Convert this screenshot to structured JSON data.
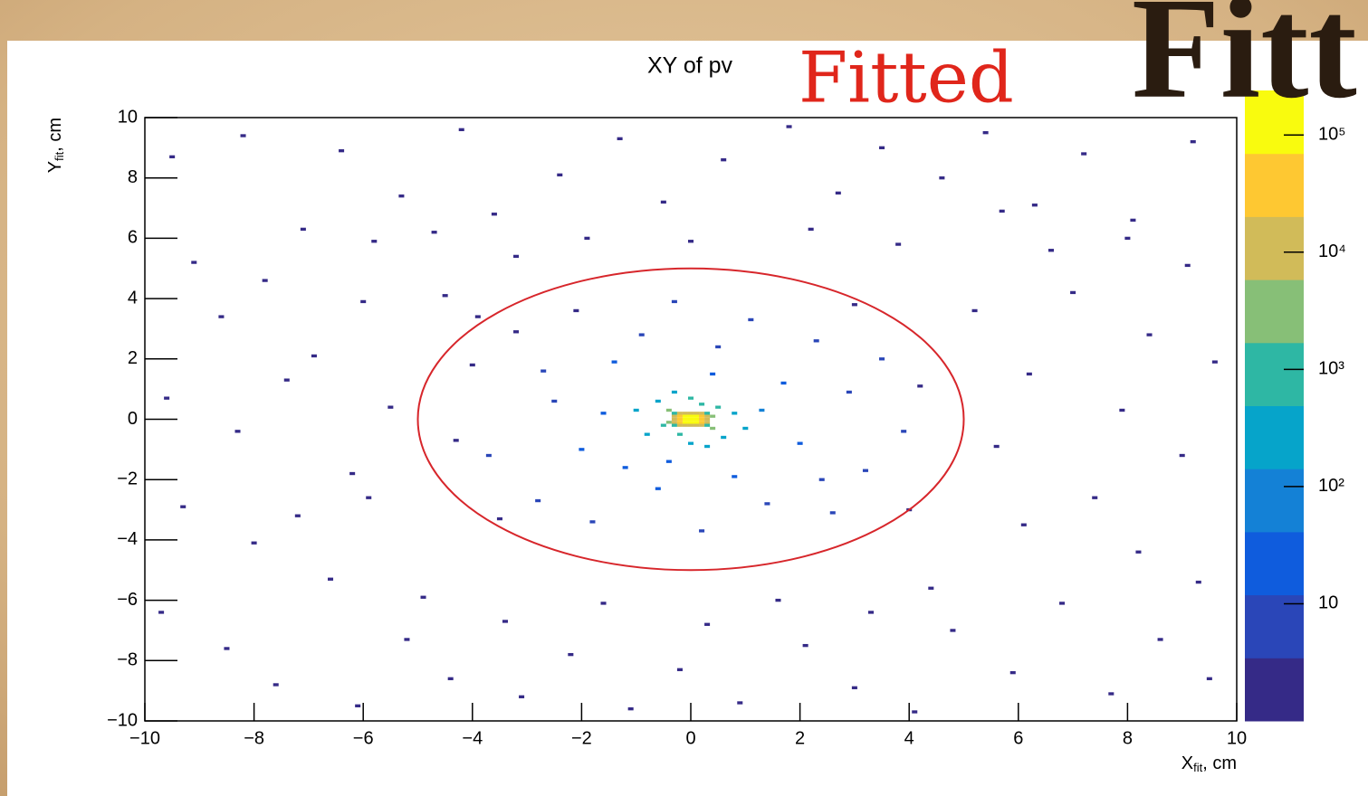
{
  "chart_data": {
    "type": "heatmap",
    "title": "XY of pv",
    "annotations": [
      "Fitted",
      "Fitt"
    ],
    "xlabel": [
      "X",
      "fit",
      ", cm"
    ],
    "ylabel": [
      "Y",
      "fit",
      ", cm"
    ],
    "xlim": [
      -10,
      10
    ],
    "ylim": [
      -10,
      10
    ],
    "xticks": [
      {
        "value": -10,
        "label": "−10"
      },
      {
        "value": -8,
        "label": "−8"
      },
      {
        "value": -6,
        "label": "−6"
      },
      {
        "value": -4,
        "label": "−4"
      },
      {
        "value": -2,
        "label": "−2"
      },
      0,
      2,
      4,
      6,
      8,
      10
    ],
    "yticks": [
      {
        "value": -10,
        "label": "−10"
      },
      {
        "value": -8,
        "label": "−8"
      },
      {
        "value": -6,
        "label": "−6"
      },
      {
        "value": -4,
        "label": "−4"
      },
      {
        "value": -2,
        "label": "−2"
      },
      0,
      2,
      4,
      6,
      8,
      10
    ],
    "bin_size": [
      0.1,
      0.1
    ],
    "x": [
      -9.5,
      -8.2,
      -7.1,
      -6.4,
      -5.3,
      -4.2,
      -3.6,
      -2.4,
      -1.3,
      -0.5,
      0.6,
      1.8,
      2.7,
      3.5,
      4.6,
      5.4,
      6.3,
      7.2,
      8.1,
      9.2,
      -9.1,
      -8.6,
      -7.8,
      -6.9,
      -9.6,
      -8.3,
      -7.4,
      -6.2,
      -9.3,
      -8.0,
      -7.2,
      -6.6,
      -9.7,
      -8.5,
      -7.6,
      -6.1,
      -5.2,
      -4.4,
      -3.1,
      -2.2,
      -1.1,
      -0.2,
      0.9,
      2.1,
      3.0,
      4.1,
      4.8,
      5.9,
      6.8,
      7.7,
      8.6,
      9.5,
      9.3,
      8.2,
      7.4,
      9.0,
      7.9,
      9.6,
      8.4,
      7.0,
      9.1,
      8.0,
      6.6,
      5.7,
      -5.8,
      -4.7,
      -6.0,
      -5.5,
      -5.9,
      -4.9,
      -3.4,
      -1.6,
      0.3,
      1.6,
      3.3,
      4.4,
      6.1,
      5.6,
      6.2,
      5.2,
      3.8,
      2.2,
      0.0,
      -1.9,
      -3.2,
      -4.5,
      -4.0,
      -3.7,
      -3.2,
      -2.8,
      -2.5,
      -2.1,
      -1.8,
      -1.4,
      -1.2,
      -0.9,
      -0.6,
      -0.3,
      0.2,
      0.5,
      0.8,
      1.1,
      1.4,
      1.7,
      2.0,
      2.3,
      2.6,
      2.9,
      3.2,
      3.5,
      3.9,
      4.2,
      -4.3,
      -3.5,
      -2.0,
      1.3,
      -1.6,
      0.4,
      -0.4,
      2.4,
      -2.7,
      3.0,
      -3.9,
      4.0,
      -1.0,
      -0.8,
      -0.6,
      -0.5,
      -0.4,
      0.4,
      0.5,
      0.6,
      0.8,
      1.0,
      0.2,
      -0.2,
      0.0,
      0.0,
      0.3,
      -0.3,
      0.4,
      -0.4,
      -0.3,
      -0.2,
      -0.1,
      0.0,
      0.1,
      0.2,
      0.3,
      -0.3,
      -0.2,
      -0.1,
      0.0,
      0.1,
      0.2,
      0.3,
      -0.3,
      -0.2,
      -0.1,
      0.0,
      0.1,
      0.2,
      0.3,
      -0.3,
      -0.2,
      -0.1,
      0.0,
      0.1,
      0.2,
      0.3,
      -0.3,
      -0.2,
      -0.1,
      0.0,
      0.1,
      0.2,
      0.3
    ],
    "y": [
      8.7,
      9.4,
      6.3,
      8.9,
      7.4,
      9.6,
      6.8,
      8.1,
      9.3,
      7.2,
      8.6,
      9.7,
      7.5,
      9.0,
      8.0,
      9.5,
      7.1,
      8.8,
      6.6,
      9.2,
      5.2,
      3.4,
      4.6,
      2.1,
      0.7,
      -0.4,
      1.3,
      -1.8,
      -2.9,
      -4.1,
      -3.2,
      -5.3,
      -6.4,
      -7.6,
      -8.8,
      -9.5,
      -7.3,
      -8.6,
      -9.2,
      -7.8,
      -9.6,
      -8.3,
      -9.4,
      -7.5,
      -8.9,
      -9.7,
      -7.0,
      -8.4,
      -6.1,
      -9.1,
      -7.3,
      -8.6,
      -5.4,
      -4.4,
      -2.6,
      -1.2,
      0.3,
      1.9,
      2.8,
      4.2,
      5.1,
      6.0,
      5.6,
      6.9,
      5.9,
      6.2,
      3.9,
      0.4,
      -2.6,
      -5.9,
      -6.7,
      -6.1,
      -6.8,
      -6.0,
      -6.4,
      -5.6,
      -3.5,
      -0.9,
      1.5,
      3.6,
      5.8,
      6.3,
      5.9,
      6.0,
      5.4,
      4.1,
      1.8,
      -1.2,
      2.9,
      -2.7,
      0.6,
      3.6,
      -3.4,
      1.9,
      -1.6,
      2.8,
      -2.3,
      3.9,
      -3.7,
      2.4,
      -1.9,
      3.3,
      -2.8,
      1.2,
      -0.8,
      2.6,
      -3.1,
      0.9,
      -1.7,
      2.0,
      -0.4,
      1.1,
      -0.7,
      -3.3,
      -1.0,
      0.3,
      0.2,
      1.5,
      -1.4,
      -2.0,
      1.6,
      3.8,
      3.4,
      -3.0,
      0.3,
      -0.5,
      0.6,
      -0.2,
      0.3,
      -0.3,
      0.4,
      -0.6,
      0.2,
      -0.3,
      0.5,
      -0.5,
      0.7,
      -0.8,
      -0.9,
      0.9,
      0.1,
      -0.1,
      0.2,
      0.2,
      0.2,
      0.2,
      0.2,
      0.2,
      0.2,
      -0.2,
      -0.2,
      -0.2,
      -0.2,
      -0.2,
      -0.2,
      -0.2,
      0.1,
      0.1,
      0.1,
      0.1,
      0.1,
      0.1,
      0.1,
      -0.1,
      -0.1,
      -0.1,
      -0.1,
      -0.1,
      -0.1,
      -0.1,
      0.0,
      0.0,
      0.0,
      0.0,
      0.0,
      0.0,
      0.0
    ],
    "z": [
      1,
      1,
      1,
      1,
      2,
      1,
      1,
      1,
      1,
      2,
      1,
      1,
      2,
      1,
      1,
      1,
      1,
      1,
      1,
      1,
      1,
      1,
      2,
      1,
      1,
      1,
      2,
      1,
      1,
      1,
      2,
      1,
      1,
      1,
      1,
      1,
      2,
      1,
      1,
      2,
      1,
      1,
      1,
      2,
      1,
      1,
      2,
      1,
      1,
      1,
      1,
      1,
      1,
      1,
      2,
      1,
      1,
      1,
      1,
      2,
      1,
      1,
      2,
      1,
      1,
      2,
      2,
      2,
      2,
      2,
      2,
      3,
      2,
      3,
      2,
      2,
      2,
      2,
      2,
      2,
      2,
      3,
      3,
      2,
      2,
      2,
      3,
      4,
      3,
      4,
      10,
      3,
      4,
      12,
      18,
      9,
      12,
      4,
      5,
      11,
      16,
      5,
      6,
      17,
      15,
      5,
      4,
      8,
      5,
      4,
      4,
      3,
      3,
      2,
      15,
      45,
      35,
      35,
      40,
      7,
      7,
      2,
      2,
      2,
      150,
      250,
      350,
      1500,
      1800,
      1800,
      1000,
      350,
      400,
      150,
      1200,
      1200,
      500,
      300,
      220,
      220,
      5000,
      5000,
      1500,
      6000,
      15000,
      20000,
      15000,
      6000,
      1500,
      1500,
      6000,
      15000,
      20000,
      15000,
      6000,
      1500,
      8000,
      30000,
      70000,
      90000,
      70000,
      30000,
      8000,
      8000,
      30000,
      70000,
      90000,
      70000,
      30000,
      8000,
      20000,
      60000,
      120000,
      150000,
      120000,
      60000,
      20000
    ],
    "zlim": [
      1,
      240000
    ],
    "zscale": "log",
    "zticks": [
      10,
      {
        "value": 100,
        "label": "10²"
      },
      {
        "value": 1000,
        "label": "10³"
      },
      {
        "value": 10000,
        "label": "10⁴"
      },
      {
        "value": 100000,
        "label": "10⁵"
      }
    ],
    "colormap": [
      "#352a87",
      "#2a46b8",
      "#0f5cdd",
      "#1481d6",
      "#06a4ca",
      "#2eb7a4",
      "#87bf77",
      "#d1bb59",
      "#fec832",
      "#f9fb0e"
    ],
    "fit": {
      "shape": "ellipse",
      "center": [
        0,
        0
      ],
      "radii": [
        5,
        5
      ],
      "color": "#d7262b"
    }
  }
}
